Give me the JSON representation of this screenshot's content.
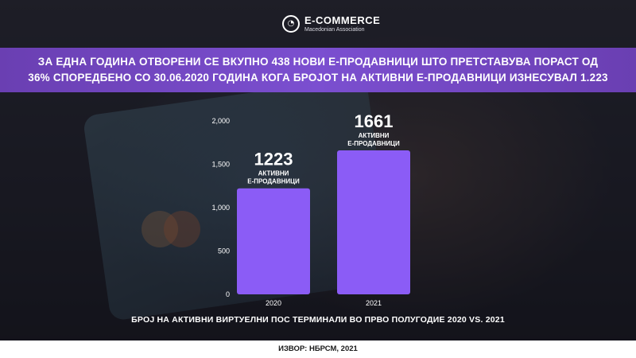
{
  "logo": {
    "title": "E-COMMERCE",
    "subtitle": "Macedonian Association"
  },
  "headline": {
    "line1": "ЗА ЕДНА ГОДИНА ОТВОРЕНИ СЕ ВКУПНО 438 НОВИ Е-ПРОДАВНИЦИ ШТО ПРЕТСТАВУВА ПОРАСТ ОД",
    "line2": "36% СПОРЕДБЕНО СО 30.06.2020 ГОДИНА КОГА БРОЈОТ НА АКТИВНИ Е-ПРОДАВНИЦИ ИЗНЕСУВАЛ 1.223"
  },
  "chart_data": {
    "type": "bar",
    "title": "БРОЈ НА АКТИВНИ ВИРТУЕЛНИ ПОС ТЕРМИНАЛИ ВО ПРВО ПОЛУГОДИЕ 2020 VS. 2021",
    "categories": [
      "2020",
      "2021"
    ],
    "values": [
      1223,
      1661
    ],
    "value_labels": [
      "1223",
      "1661"
    ],
    "bar_sublabels": [
      [
        "АКТИВНИ",
        "Е-ПРОДАВНИЦИ"
      ],
      [
        "АКТИВНИ",
        "Е-ПРОДАВНИЦИ"
      ]
    ],
    "yticks": [
      0,
      500,
      1000,
      1500,
      2000
    ],
    "ytick_labels": [
      "0",
      "500",
      "1,000",
      "1,500",
      "2,000"
    ],
    "ylim": [
      0,
      2000
    ],
    "grid": false,
    "bar_color": "#8b5cf6"
  },
  "footer": {
    "source": "ИЗВОР: НБРСМ, 2021"
  },
  "colors": {
    "headline_bar": "#7b4fd0",
    "bar": "#8b5cf6"
  }
}
